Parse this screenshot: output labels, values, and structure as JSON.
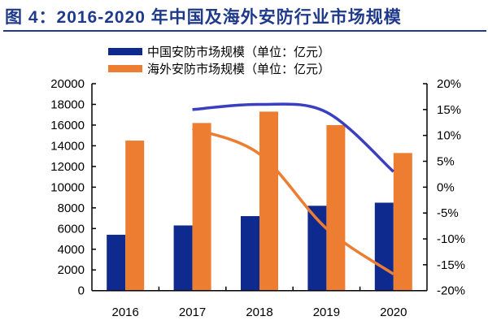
{
  "title": "图 4：2016-2020 年中国及海外安防行业市场规模",
  "chart_data": {
    "type": "bar+line",
    "title": "图 4：2016-2020 年中国及海外安防行业市场规模",
    "categories": [
      "2016",
      "2017",
      "2018",
      "2019",
      "2020"
    ],
    "series": [
      {
        "name": "中国安防市场规模（单位：亿元）",
        "type": "bar",
        "axis": "left",
        "color": "#0f2a8f",
        "values": [
          5400,
          6300,
          7200,
          8200,
          8500
        ]
      },
      {
        "name": "海外安防市场规模（单位：亿元）",
        "type": "bar",
        "axis": "left",
        "color": "#ed7d31",
        "values": [
          14500,
          16200,
          17300,
          16000,
          13300
        ]
      },
      {
        "type": "line",
        "axis": "right",
        "color": "#3a3fc0",
        "values": [
          null,
          15,
          16,
          14.5,
          3
        ]
      },
      {
        "type": "line",
        "axis": "right",
        "color": "#ed7d31",
        "values": [
          null,
          11.3,
          6.4,
          -8,
          -16.8
        ]
      }
    ],
    "left_axis": {
      "ylim": [
        0,
        20000
      ],
      "ticks": [
        "0",
        "2000",
        "4000",
        "6000",
        "8000",
        "10000",
        "12000",
        "14000",
        "16000",
        "18000",
        "20000"
      ]
    },
    "right_axis": {
      "ylim": [
        -20,
        20
      ],
      "ticks": [
        "-20%",
        "-15%",
        "-10%",
        "-5%",
        "0%",
        "5%",
        "10%",
        "15%",
        "20%"
      ]
    },
    "legend": "top-center",
    "grid": false
  }
}
